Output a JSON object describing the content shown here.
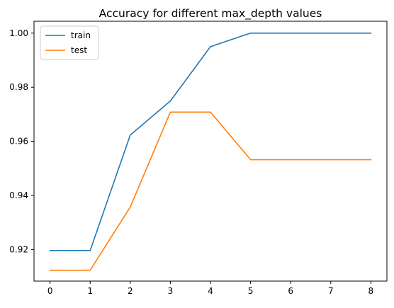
{
  "chart_data": {
    "type": "line",
    "title": "Accuracy for different max_depth values",
    "xlabel": "",
    "ylabel": "",
    "x": [
      0,
      1,
      2,
      3,
      4,
      5,
      6,
      7,
      8
    ],
    "xticks": [
      0,
      1,
      2,
      3,
      4,
      5,
      6,
      7,
      8
    ],
    "xtick_labels": [
      "0",
      "1",
      "2",
      "3",
      "4",
      "5",
      "6",
      "7",
      "8"
    ],
    "yticks": [
      0.92,
      0.94,
      0.96,
      0.98,
      1.0
    ],
    "ytick_labels": [
      "0.92",
      "0.94",
      "0.96",
      "0.98",
      "1.00"
    ],
    "xlim": [
      -0.4,
      8.4
    ],
    "ylim": [
      0.9083,
      1.0044
    ],
    "grid": false,
    "legend_position": "top-left",
    "series": [
      {
        "name": "train",
        "color": "#1f77b4",
        "values": [
          0.9196,
          0.9196,
          0.9623,
          0.9749,
          0.995,
          1.0,
          1.0,
          1.0,
          1.0
        ]
      },
      {
        "name": "test",
        "color": "#ff7f0e",
        "values": [
          0.9123,
          0.9123,
          0.9357,
          0.9708,
          0.9708,
          0.9532,
          0.9532,
          0.9532,
          0.9532
        ]
      }
    ]
  }
}
